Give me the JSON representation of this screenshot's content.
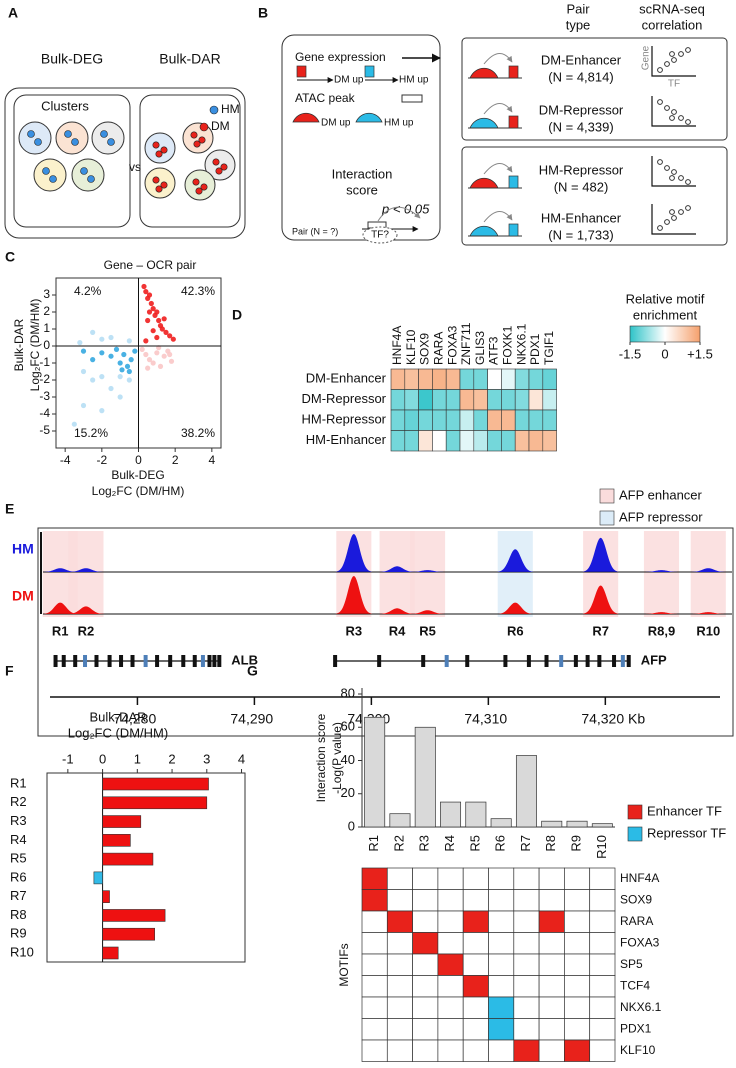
{
  "panels": {
    "a": {
      "label": "A",
      "left_title": "Bulk-DEG",
      "right_title": "Bulk-DAR",
      "clusters": "Clusters",
      "vs": "vs",
      "legend": [
        "HM",
        "DM"
      ]
    },
    "b": {
      "label": "B",
      "gene_expression": "Gene expression",
      "dm_up": "DM up",
      "hm_up": "HM up",
      "atac_peak": "ATAC peak",
      "atac_dm_up": "DM up",
      "atac_hm_up": "HM up",
      "interaction_score": [
        "Interaction",
        "score"
      ],
      "p_value": "p < 0.05",
      "pair": "Pair (N = ?)",
      "tf": "TF?",
      "header_pair_type": [
        "Pair",
        "type"
      ],
      "header_correlation": [
        "scRNA-seq",
        "correlation"
      ],
      "pair_types": [
        {
          "name": "DM-Enhancer",
          "n": "(N = 4,814)"
        },
        {
          "name": "DM-Repressor",
          "n": "(N = 4,339)"
        },
        {
          "name": "HM-Repressor",
          "n": "(N = 482)"
        },
        {
          "name": "HM-Enhancer",
          "n": "(N = 1,733)"
        }
      ],
      "gene": "Gene",
      "tf_axis": "TF"
    }
  },
  "chart_data": [
    {
      "type": "scatter",
      "panel": "C",
      "title": "Gene – OCR pair",
      "xlabel": [
        "Bulk-DEG",
        "Log₂FC (DM/HM)"
      ],
      "ylabel": [
        "Bulk-DAR",
        "Log₂FC (DM/HM)"
      ],
      "xlim": [
        -4.5,
        4.5
      ],
      "xticks": [
        -4,
        -2,
        0,
        2,
        4
      ],
      "ylim": [
        -6,
        4
      ],
      "yticks": [
        3,
        2,
        1,
        0,
        -1,
        -2,
        -3,
        -4,
        -5
      ],
      "quadrant_labels": {
        "top_left": "4.2%",
        "top_right": "42.3%",
        "bottom_left": "15.2%",
        "bottom_right": "38.2%"
      },
      "series": [
        {
          "color": "#b6def4",
          "x": [
            -3.5,
            -3.0,
            -2.5,
            -2.0,
            -1.5,
            -1.0,
            -0.5,
            -3.0,
            -2.0,
            -1.5,
            -0.5,
            -2.5,
            -3.2,
            -1.0,
            -2.0
          ],
          "y": [
            -4.6,
            -3.5,
            -2.0,
            -1.8,
            -2.5,
            -3.0,
            -2.0,
            -1.5,
            -3.8,
            0.5,
            0.3,
            0.8,
            0.2,
            -1.8,
            0.4
          ]
        },
        {
          "color": "#f9c6c6",
          "x": [
            0.2,
            0.4,
            0.6,
            0.8,
            1.0,
            1.2,
            1.4,
            1.6,
            1.8,
            0.5,
            1.1,
            1.7
          ],
          "y": [
            -0.2,
            -0.5,
            -0.8,
            -1.0,
            -0.4,
            -1.2,
            -0.6,
            -0.3,
            -0.9,
            -1.3,
            -0.1,
            -0.5
          ]
        },
        {
          "color": "#35a9e0",
          "x": [
            -0.2,
            -0.4,
            -0.6,
            -0.8,
            -1.0,
            -1.2,
            -1.5,
            -2.0,
            -2.5,
            -3.0,
            -0.5,
            -0.9
          ],
          "y": [
            -0.3,
            -0.8,
            -1.2,
            -0.5,
            -1.0,
            -0.2,
            -0.6,
            -0.4,
            -0.8,
            -0.3,
            -1.5,
            -1.4
          ]
        },
        {
          "color": "#f01e1e",
          "x": [
            0.3,
            0.4,
            0.5,
            0.6,
            0.7,
            0.8,
            0.9,
            1.0,
            1.1,
            1.2,
            1.3,
            1.5,
            1.7,
            1.9,
            0.5,
            0.8,
            1.0,
            1.4,
            0.4,
            0.6
          ],
          "y": [
            3.5,
            3.2,
            2.8,
            3.0,
            2.5,
            2.2,
            1.8,
            2.0,
            1.5,
            1.2,
            1.0,
            0.8,
            0.6,
            0.4,
            1.5,
            0.9,
            0.5,
            1.6,
            0.3,
            2.0
          ]
        }
      ]
    },
    {
      "type": "heatmap",
      "panel": "D",
      "columns": [
        "HNF4A",
        "KLF10",
        "SOX9",
        "RARA",
        "FOXA3",
        "ZNF711",
        "GLIS3",
        "ATF3",
        "FOXK1",
        "NKX6.1",
        "PDX1",
        "TGIF1"
      ],
      "rows": [
        "DM-Enhancer",
        "DM-Repressor",
        "HM-Repressor",
        "HM-Enhancer"
      ],
      "values": [
        [
          1.1,
          1.0,
          1.1,
          1.2,
          1.1,
          -1.0,
          -1.0,
          0.0,
          -0.2,
          -0.9,
          -1.0,
          -1.1
        ],
        [
          -1.0,
          -0.9,
          -1.4,
          -1.0,
          -1.0,
          1.1,
          1.0,
          -1.0,
          -1.0,
          -0.9,
          0.4,
          -0.4
        ],
        [
          -1.0,
          -1.1,
          -1.0,
          -1.0,
          -1.0,
          -0.4,
          -1.0,
          1.1,
          1.1,
          -1.0,
          -1.0,
          -1.0
        ],
        [
          -1.0,
          -1.0,
          0.4,
          0.0,
          -1.0,
          -0.2,
          -0.5,
          -1.0,
          -1.0,
          1.0,
          1.1,
          1.0
        ]
      ],
      "colors": [
        "#2ec3c8",
        "#ffffff",
        "#f5a06c"
      ],
      "vlim": [
        -1.5,
        1.5
      ],
      "ticks": [
        -1.5,
        0,
        {
          "value": 1.5,
          "label": "+1.5"
        }
      ],
      "legend_title": [
        "Relative motif",
        "enrichment"
      ]
    },
    {
      "type": "track",
      "panel": "E",
      "xlim": [
        74271.5,
        74331
      ],
      "xticks": [
        {
          "value": 74280,
          "label": "74,280"
        },
        {
          "value": 74290,
          "label": "74,290"
        },
        {
          "value": 74300,
          "label": "74,300"
        },
        {
          "value": 74310,
          "label": "74,310"
        },
        {
          "value": 74320,
          "label": "74,320 Kb"
        }
      ],
      "regions": {
        "labels": [
          "R1",
          "R2",
          "R3",
          "R4",
          "R5",
          "R6",
          "R7",
          "R8,9",
          "R10"
        ],
        "x": [
          74273.4,
          74275.6,
          74298.5,
          74302.2,
          74304.8,
          74312.3,
          74319.6,
          74324.8,
          74328.8
        ],
        "colors": [
          "#fadcdc",
          "#fadcdc",
          "#fadcdc",
          "#fadcdc",
          "#fadcdc",
          "#dcecf8",
          "#fadcdc",
          "#fadcdc",
          "#fadcdc"
        ]
      },
      "tracks": [
        {
          "name": "HM",
          "color": "#1a1adc",
          "values": [
            0.1,
            0.1,
            1.0,
            0.15,
            0.05,
            0.6,
            0.9,
            0.05,
            0.1
          ]
        },
        {
          "name": "DM",
          "color": "#ee1111",
          "values": [
            0.3,
            0.2,
            1.0,
            0.15,
            0.1,
            0.3,
            0.75,
            0.05,
            0.05
          ]
        }
      ],
      "legend": [
        {
          "name": "AFP enhancer",
          "color": "#fadcdc"
        },
        {
          "name": "AFP repressor",
          "color": "#dcecf8"
        }
      ],
      "genes": [
        {
          "name": "ALB",
          "start": 74273,
          "end": 74287
        },
        {
          "name": "AFP",
          "start": 74296.9,
          "end": 74322
        }
      ]
    },
    {
      "type": "hbar",
      "panel": "F",
      "title": [
        "Bulk-DAR",
        "Log₂FC (DM/HM)"
      ],
      "categories": [
        "R1",
        "R2",
        "R3",
        "R4",
        "R5",
        "R6",
        "R7",
        "R8",
        "R9",
        "R10"
      ],
      "values": [
        3.05,
        3.0,
        1.1,
        0.8,
        1.45,
        -0.25,
        0.2,
        1.8,
        1.5,
        0.45
      ],
      "xlim": [
        -1.6,
        4.1
      ],
      "xticks": [
        -1,
        0,
        1,
        2,
        3,
        4
      ],
      "color": "#ee1111",
      "negative_color": "#33bbe8"
    },
    {
      "type": "bar",
      "panel": "G",
      "ylabel": [
        "Interaction score",
        "-Log(P value)"
      ],
      "categories": [
        "R1",
        "R2",
        "R3",
        "R4",
        "R5",
        "R6",
        "R7",
        "R8",
        "R9",
        "R10"
      ],
      "values": [
        66,
        8,
        60,
        15,
        15,
        5,
        43,
        3.5,
        3.5,
        2
      ],
      "ylim": [
        0,
        80
      ],
      "yticks": [
        0,
        20,
        40,
        60,
        80
      ],
      "color": "#d9d9d9"
    },
    {
      "type": "matrix",
      "ylabel": "MOTIFs",
      "rows": [
        "HNF4A",
        "SOX9",
        "RARA",
        "FOXA3",
        "SP5",
        "TCF4",
        "NKX6.1",
        "PDX1",
        "KLF10"
      ],
      "values": [
        [
          1,
          0,
          0,
          0,
          0,
          0,
          0,
          0,
          0,
          0
        ],
        [
          1,
          0,
          0,
          0,
          0,
          0,
          0,
          0,
          0,
          0
        ],
        [
          0,
          1,
          0,
          0,
          1,
          0,
          0,
          1,
          0,
          0
        ],
        [
          0,
          0,
          1,
          0,
          0,
          0,
          0,
          0,
          0,
          0
        ],
        [
          0,
          0,
          0,
          1,
          0,
          0,
          0,
          0,
          0,
          0
        ],
        [
          0,
          0,
          0,
          0,
          1,
          0,
          0,
          0,
          0,
          0
        ],
        [
          0,
          0,
          0,
          0,
          0,
          -1,
          0,
          0,
          0,
          0
        ],
        [
          0,
          0,
          0,
          0,
          0,
          -1,
          0,
          0,
          0,
          0
        ],
        [
          0,
          0,
          0,
          0,
          0,
          0,
          1,
          0,
          1,
          0
        ]
      ],
      "legend": [
        {
          "name": "Enhancer TF",
          "color": "#e8221b",
          "value": 1
        },
        {
          "name": "Repressor TF",
          "color": "#2bbbe6",
          "value": -1
        }
      ]
    }
  ]
}
